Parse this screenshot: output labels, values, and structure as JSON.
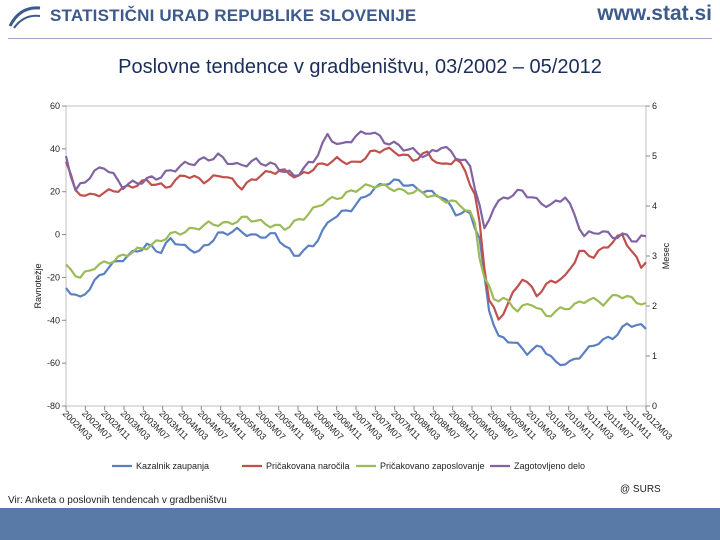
{
  "header": {
    "org_name": "STATISTIČNI URAD REPUBLIKE SLOVENIJE",
    "website": "www.stat.si",
    "logo_icon": "surs-logo-icon"
  },
  "footer": {
    "source": "Vir: Anketa o poslovnih tendencah v gradbeništvu",
    "copyright": "@ SURS",
    "bar_color": "#5979a6"
  },
  "chart_data": {
    "type": "line",
    "title": "Poslovne tendence v gradbeništvu, 03/2002 – 05/2012",
    "ylabel": "Ravnotežje",
    "y2label": "Mesec",
    "ylim": [
      -80,
      60
    ],
    "y2lim": [
      0,
      6
    ],
    "yticks": [
      "60",
      "40",
      "20",
      "0",
      "-20",
      "-40",
      "-60",
      "-80"
    ],
    "y2ticks": [
      "6",
      "5",
      "4",
      "3",
      "2",
      "1",
      "0"
    ],
    "xticks": [
      "2002M03",
      "2002M07",
      "2002M11",
      "2003M03",
      "2003M07",
      "2003M11",
      "2004M03",
      "2004M07",
      "2004M11",
      "2005M03",
      "2005M07",
      "2005M11",
      "2006M03",
      "2006M07",
      "2006M11",
      "2007M03",
      "2007M07",
      "2007M11",
      "2008M03",
      "2008M07",
      "2008M11",
      "2009M03",
      "2009M07",
      "2009M11",
      "2010M03",
      "2010M07",
      "2010M11",
      "2011M03",
      "2011M07",
      "2011M11",
      "2012M03"
    ],
    "x_start": "2002M03",
    "n_points": 123,
    "legend_position": "bottom",
    "grid": false,
    "series": [
      {
        "name": "Kazalnik zaupanja",
        "axis": "left",
        "color": "#5b80c2",
        "anchors": [
          [
            0,
            -25
          ],
          [
            3,
            -30
          ],
          [
            6,
            -22
          ],
          [
            9,
            -15
          ],
          [
            13,
            -10
          ],
          [
            17,
            -5
          ],
          [
            20,
            -8
          ],
          [
            22,
            -2
          ],
          [
            25,
            -6
          ],
          [
            28,
            -8
          ],
          [
            32,
            0
          ],
          [
            36,
            2
          ],
          [
            40,
            -1
          ],
          [
            44,
            0
          ],
          [
            48,
            -10
          ],
          [
            52,
            -5
          ],
          [
            56,
            8
          ],
          [
            60,
            12
          ],
          [
            64,
            20
          ],
          [
            67,
            24
          ],
          [
            70,
            25
          ],
          [
            73,
            22
          ],
          [
            76,
            20
          ],
          [
            79,
            18
          ],
          [
            82,
            10
          ],
          [
            85,
            10
          ],
          [
            87,
            -2
          ],
          [
            88,
            -20
          ],
          [
            89,
            -35
          ],
          [
            91,
            -48
          ],
          [
            94,
            -50
          ],
          [
            97,
            -55
          ],
          [
            100,
            -52
          ],
          [
            103,
            -60
          ],
          [
            106,
            -60
          ],
          [
            109,
            -55
          ],
          [
            112,
            -50
          ],
          [
            115,
            -48
          ],
          [
            118,
            -42
          ],
          [
            120,
            -42
          ],
          [
            122,
            -44
          ]
        ]
      },
      {
        "name": "Pričakovana naročila",
        "axis": "left",
        "color": "#c0504d",
        "anchors": [
          [
            0,
            35
          ],
          [
            2,
            20
          ],
          [
            5,
            18
          ],
          [
            9,
            20
          ],
          [
            13,
            22
          ],
          [
            17,
            25
          ],
          [
            21,
            22
          ],
          [
            25,
            28
          ],
          [
            29,
            25
          ],
          [
            33,
            28
          ],
          [
            37,
            22
          ],
          [
            41,
            28
          ],
          [
            45,
            30
          ],
          [
            49,
            27
          ],
          [
            53,
            32
          ],
          [
            57,
            35
          ],
          [
            61,
            33
          ],
          [
            64,
            38
          ],
          [
            67,
            40
          ],
          [
            70,
            38
          ],
          [
            73,
            35
          ],
          [
            76,
            38
          ],
          [
            79,
            32
          ],
          [
            82,
            35
          ],
          [
            84,
            30
          ],
          [
            86,
            18
          ],
          [
            87,
            5
          ],
          [
            88,
            -15
          ],
          [
            89,
            -30
          ],
          [
            91,
            -40
          ],
          [
            93,
            -32
          ],
          [
            96,
            -20
          ],
          [
            99,
            -28
          ],
          [
            102,
            -22
          ],
          [
            105,
            -20
          ],
          [
            108,
            -8
          ],
          [
            111,
            -10
          ],
          [
            114,
            -5
          ],
          [
            117,
            0
          ],
          [
            119,
            -8
          ],
          [
            121,
            -15
          ],
          [
            122,
            -12
          ]
        ]
      },
      {
        "name": "Pričakovano zaposlovanje",
        "axis": "left",
        "color": "#9bbb59",
        "anchors": [
          [
            0,
            -15
          ],
          [
            3,
            -20
          ],
          [
            6,
            -15
          ],
          [
            10,
            -12
          ],
          [
            14,
            -8
          ],
          [
            18,
            -5
          ],
          [
            22,
            0
          ],
          [
            26,
            2
          ],
          [
            30,
            5
          ],
          [
            34,
            5
          ],
          [
            38,
            8
          ],
          [
            42,
            5
          ],
          [
            46,
            3
          ],
          [
            50,
            8
          ],
          [
            54,
            15
          ],
          [
            58,
            18
          ],
          [
            62,
            22
          ],
          [
            65,
            23
          ],
          [
            68,
            22
          ],
          [
            71,
            20
          ],
          [
            74,
            20
          ],
          [
            77,
            18
          ],
          [
            80,
            16
          ],
          [
            83,
            14
          ],
          [
            85,
            10
          ],
          [
            86,
            5
          ],
          [
            87,
            -10
          ],
          [
            88,
            -20
          ],
          [
            90,
            -30
          ],
          [
            92,
            -30
          ],
          [
            95,
            -35
          ],
          [
            98,
            -32
          ],
          [
            101,
            -38
          ],
          [
            104,
            -35
          ],
          [
            107,
            -33
          ],
          [
            110,
            -30
          ],
          [
            113,
            -32
          ],
          [
            116,
            -28
          ],
          [
            119,
            -30
          ],
          [
            122,
            -33
          ]
        ]
      },
      {
        "name": "Zagotovljeno delo",
        "axis": "right",
        "color": "#8064a2",
        "anchors": [
          [
            0,
            5.0
          ],
          [
            2,
            4.3
          ],
          [
            5,
            4.6
          ],
          [
            8,
            4.8
          ],
          [
            12,
            4.4
          ],
          [
            16,
            4.5
          ],
          [
            20,
            4.6
          ],
          [
            24,
            4.8
          ],
          [
            28,
            4.9
          ],
          [
            32,
            5.0
          ],
          [
            36,
            4.8
          ],
          [
            40,
            4.9
          ],
          [
            44,
            4.8
          ],
          [
            48,
            4.6
          ],
          [
            52,
            4.9
          ],
          [
            55,
            5.4
          ],
          [
            58,
            5.2
          ],
          [
            61,
            5.4
          ],
          [
            64,
            5.5
          ],
          [
            67,
            5.3
          ],
          [
            70,
            5.2
          ],
          [
            73,
            5.1
          ],
          [
            76,
            5.0
          ],
          [
            79,
            5.2
          ],
          [
            82,
            5.0
          ],
          [
            85,
            4.8
          ],
          [
            86,
            4.4
          ],
          [
            87,
            4.0
          ],
          [
            88,
            3.5
          ],
          [
            90,
            4.0
          ],
          [
            93,
            4.2
          ],
          [
            96,
            4.3
          ],
          [
            99,
            4.1
          ],
          [
            102,
            4.0
          ],
          [
            105,
            4.2
          ],
          [
            107,
            3.8
          ],
          [
            109,
            3.4
          ],
          [
            112,
            3.5
          ],
          [
            115,
            3.4
          ],
          [
            118,
            3.4
          ],
          [
            120,
            3.3
          ],
          [
            122,
            3.4
          ]
        ]
      }
    ]
  }
}
